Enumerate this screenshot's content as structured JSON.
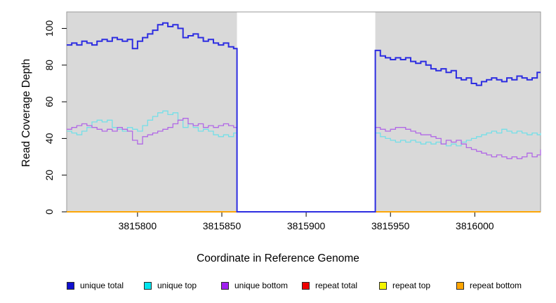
{
  "figure": {
    "xlabel": "Coordinate in Reference Genome",
    "ylabel": "Read Coverage Depth"
  },
  "colors": {
    "plot_background": "#d9d9d9",
    "gap_background": "#ffffff",
    "plot_border": "#9a9a9a",
    "tick_color": "#000000",
    "unique_total": "#2d2de1",
    "unique_top": "#74dfe8",
    "unique_bottom": "#b168e6",
    "repeat_total": "#dd0000",
    "repeat_top": "#f0f000",
    "repeat_bottom": "#ffa500"
  },
  "chart_data": {
    "type": "line",
    "line_style": "step-after",
    "title": "",
    "xlabel": "Coordinate in Reference Genome",
    "ylabel": "Read Coverage Depth",
    "xlim": [
      3815758,
      3816039
    ],
    "ylim": [
      0,
      109
    ],
    "xticks": [
      3815800,
      3815850,
      3815900,
      3815950,
      3816000
    ],
    "yticks": [
      0,
      20,
      40,
      60,
      80,
      100
    ],
    "grid": false,
    "legend_position": "bottom",
    "background_regions": [
      {
        "label": "covered-left",
        "x0": 3815758,
        "x1": 3815859,
        "color": "#d9d9d9"
      },
      {
        "label": "zero-coverage-gap",
        "x0": 3815859,
        "x1": 3815941,
        "color": "#ffffff"
      },
      {
        "label": "covered-right",
        "x0": 3815941,
        "x1": 3816039,
        "color": "#d9d9d9"
      }
    ],
    "series": [
      {
        "name": "repeat total",
        "color": "#dd0000",
        "width": 1.5,
        "points": [
          [
            3815758,
            0
          ],
          [
            3816039,
            0
          ]
        ]
      },
      {
        "name": "repeat top",
        "color": "#f0f000",
        "width": 1.5,
        "points": [
          [
            3815758,
            0
          ],
          [
            3816039,
            0
          ]
        ]
      },
      {
        "name": "repeat bottom",
        "color": "#ffa500",
        "width": 1.8,
        "points": [
          [
            3815758,
            0
          ],
          [
            3816039,
            0
          ]
        ]
      },
      {
        "name": "unique top",
        "color": "#74dfe8",
        "width": 1.3,
        "points": [
          [
            3815758,
            44
          ],
          [
            3815761,
            43
          ],
          [
            3815764,
            42
          ],
          [
            3815767,
            44
          ],
          [
            3815770,
            46
          ],
          [
            3815773,
            49
          ],
          [
            3815776,
            50
          ],
          [
            3815779,
            49
          ],
          [
            3815782,
            50
          ],
          [
            3815785,
            46
          ],
          [
            3815788,
            45
          ],
          [
            3815791,
            44
          ],
          [
            3815794,
            46
          ],
          [
            3815797,
            45
          ],
          [
            3815800,
            44
          ],
          [
            3815803,
            47
          ],
          [
            3815806,
            50
          ],
          [
            3815809,
            52
          ],
          [
            3815812,
            54
          ],
          [
            3815815,
            55
          ],
          [
            3815818,
            53
          ],
          [
            3815821,
            54
          ],
          [
            3815824,
            50
          ],
          [
            3815827,
            46
          ],
          [
            3815830,
            48
          ],
          [
            3815833,
            46
          ],
          [
            3815836,
            44
          ],
          [
            3815839,
            45
          ],
          [
            3815842,
            44
          ],
          [
            3815845,
            42
          ],
          [
            3815848,
            41
          ],
          [
            3815851,
            42
          ],
          [
            3815854,
            41
          ],
          [
            3815857,
            43
          ],
          [
            3815859,
            0
          ],
          [
            3815941,
            43
          ],
          [
            3815944,
            41
          ],
          [
            3815947,
            40
          ],
          [
            3815950,
            39
          ],
          [
            3815953,
            38
          ],
          [
            3815956,
            39
          ],
          [
            3815959,
            38
          ],
          [
            3815962,
            39
          ],
          [
            3815965,
            38
          ],
          [
            3815968,
            37
          ],
          [
            3815971,
            38
          ],
          [
            3815974,
            37
          ],
          [
            3815977,
            38
          ],
          [
            3815980,
            37
          ],
          [
            3815983,
            36
          ],
          [
            3815986,
            37
          ],
          [
            3815989,
            36
          ],
          [
            3815992,
            38
          ],
          [
            3815995,
            39
          ],
          [
            3815998,
            40
          ],
          [
            3816001,
            41
          ],
          [
            3816004,
            42
          ],
          [
            3816007,
            43
          ],
          [
            3816010,
            44
          ],
          [
            3816013,
            43
          ],
          [
            3816016,
            45
          ],
          [
            3816019,
            44
          ],
          [
            3816022,
            43
          ],
          [
            3816025,
            44
          ],
          [
            3816028,
            43
          ],
          [
            3816031,
            42
          ],
          [
            3816034,
            43
          ],
          [
            3816037,
            42
          ],
          [
            3816039,
            43
          ]
        ]
      },
      {
        "name": "unique bottom",
        "color": "#b168e6",
        "width": 1.3,
        "points": [
          [
            3815758,
            45
          ],
          [
            3815761,
            46
          ],
          [
            3815764,
            47
          ],
          [
            3815767,
            48
          ],
          [
            3815770,
            47
          ],
          [
            3815773,
            46
          ],
          [
            3815776,
            45
          ],
          [
            3815779,
            44
          ],
          [
            3815782,
            45
          ],
          [
            3815785,
            44
          ],
          [
            3815788,
            46
          ],
          [
            3815791,
            45
          ],
          [
            3815794,
            44
          ],
          [
            3815797,
            39
          ],
          [
            3815800,
            37
          ],
          [
            3815803,
            41
          ],
          [
            3815806,
            42
          ],
          [
            3815809,
            43
          ],
          [
            3815812,
            44
          ],
          [
            3815815,
            45
          ],
          [
            3815818,
            46
          ],
          [
            3815821,
            48
          ],
          [
            3815824,
            50
          ],
          [
            3815827,
            51
          ],
          [
            3815830,
            48
          ],
          [
            3815833,
            47
          ],
          [
            3815836,
            48
          ],
          [
            3815839,
            46
          ],
          [
            3815842,
            47
          ],
          [
            3815845,
            46
          ],
          [
            3815848,
            47
          ],
          [
            3815851,
            48
          ],
          [
            3815854,
            47
          ],
          [
            3815857,
            46
          ],
          [
            3815859,
            0
          ],
          [
            3815941,
            46
          ],
          [
            3815944,
            45
          ],
          [
            3815947,
            44
          ],
          [
            3815950,
            45
          ],
          [
            3815953,
            46
          ],
          [
            3815956,
            46
          ],
          [
            3815959,
            45
          ],
          [
            3815962,
            44
          ],
          [
            3815965,
            43
          ],
          [
            3815968,
            42
          ],
          [
            3815971,
            42
          ],
          [
            3815974,
            41
          ],
          [
            3815977,
            40
          ],
          [
            3815980,
            37
          ],
          [
            3815983,
            39
          ],
          [
            3815986,
            38
          ],
          [
            3815989,
            39
          ],
          [
            3815992,
            37
          ],
          [
            3815995,
            35
          ],
          [
            3815998,
            34
          ],
          [
            3816001,
            33
          ],
          [
            3816004,
            32
          ],
          [
            3816007,
            31
          ],
          [
            3816010,
            30
          ],
          [
            3816013,
            31
          ],
          [
            3816016,
            30
          ],
          [
            3816019,
            29
          ],
          [
            3816022,
            30
          ],
          [
            3816025,
            29
          ],
          [
            3816028,
            30
          ],
          [
            3816031,
            32
          ],
          [
            3816034,
            30
          ],
          [
            3816037,
            31
          ],
          [
            3816039,
            34
          ]
        ]
      },
      {
        "name": "unique total",
        "color": "#2d2de1",
        "width": 2,
        "points": [
          [
            3815758,
            91
          ],
          [
            3815761,
            92
          ],
          [
            3815764,
            91
          ],
          [
            3815767,
            93
          ],
          [
            3815770,
            92
          ],
          [
            3815773,
            91
          ],
          [
            3815776,
            93
          ],
          [
            3815779,
            94
          ],
          [
            3815782,
            93
          ],
          [
            3815785,
            95
          ],
          [
            3815788,
            94
          ],
          [
            3815791,
            93
          ],
          [
            3815794,
            94
          ],
          [
            3815797,
            89
          ],
          [
            3815800,
            93
          ],
          [
            3815803,
            95
          ],
          [
            3815806,
            97
          ],
          [
            3815809,
            99
          ],
          [
            3815812,
            102
          ],
          [
            3815815,
            103
          ],
          [
            3815818,
            101
          ],
          [
            3815821,
            102
          ],
          [
            3815824,
            100
          ],
          [
            3815827,
            95
          ],
          [
            3815830,
            96
          ],
          [
            3815833,
            97
          ],
          [
            3815836,
            95
          ],
          [
            3815839,
            93
          ],
          [
            3815842,
            94
          ],
          [
            3815845,
            92
          ],
          [
            3815848,
            91
          ],
          [
            3815851,
            92
          ],
          [
            3815854,
            90
          ],
          [
            3815857,
            89
          ],
          [
            3815859,
            0
          ],
          [
            3815941,
            88
          ],
          [
            3815944,
            85
          ],
          [
            3815947,
            84
          ],
          [
            3815950,
            83
          ],
          [
            3815953,
            84
          ],
          [
            3815956,
            83
          ],
          [
            3815959,
            84
          ],
          [
            3815962,
            82
          ],
          [
            3815965,
            81
          ],
          [
            3815968,
            82
          ],
          [
            3815971,
            80
          ],
          [
            3815974,
            78
          ],
          [
            3815977,
            77
          ],
          [
            3815980,
            78
          ],
          [
            3815983,
            76
          ],
          [
            3815986,
            77
          ],
          [
            3815989,
            73
          ],
          [
            3815992,
            72
          ],
          [
            3815995,
            73
          ],
          [
            3815998,
            70
          ],
          [
            3816001,
            69
          ],
          [
            3816004,
            71
          ],
          [
            3816007,
            72
          ],
          [
            3816010,
            73
          ],
          [
            3816013,
            72
          ],
          [
            3816016,
            71
          ],
          [
            3816019,
            73
          ],
          [
            3816022,
            72
          ],
          [
            3816025,
            74
          ],
          [
            3816028,
            73
          ],
          [
            3816031,
            72
          ],
          [
            3816034,
            73
          ],
          [
            3816037,
            76
          ],
          [
            3816039,
            76
          ]
        ]
      }
    ],
    "legend": [
      {
        "label": "unique total",
        "fill": "#1010d0"
      },
      {
        "label": "unique top",
        "fill": "#00e5ee"
      },
      {
        "label": "unique bottom",
        "fill": "#a020f0"
      },
      {
        "label": "repeat total",
        "fill": "#ee0000"
      },
      {
        "label": "repeat top",
        "fill": "#f5f500"
      },
      {
        "label": "repeat bottom",
        "fill": "#ffa500"
      }
    ]
  }
}
